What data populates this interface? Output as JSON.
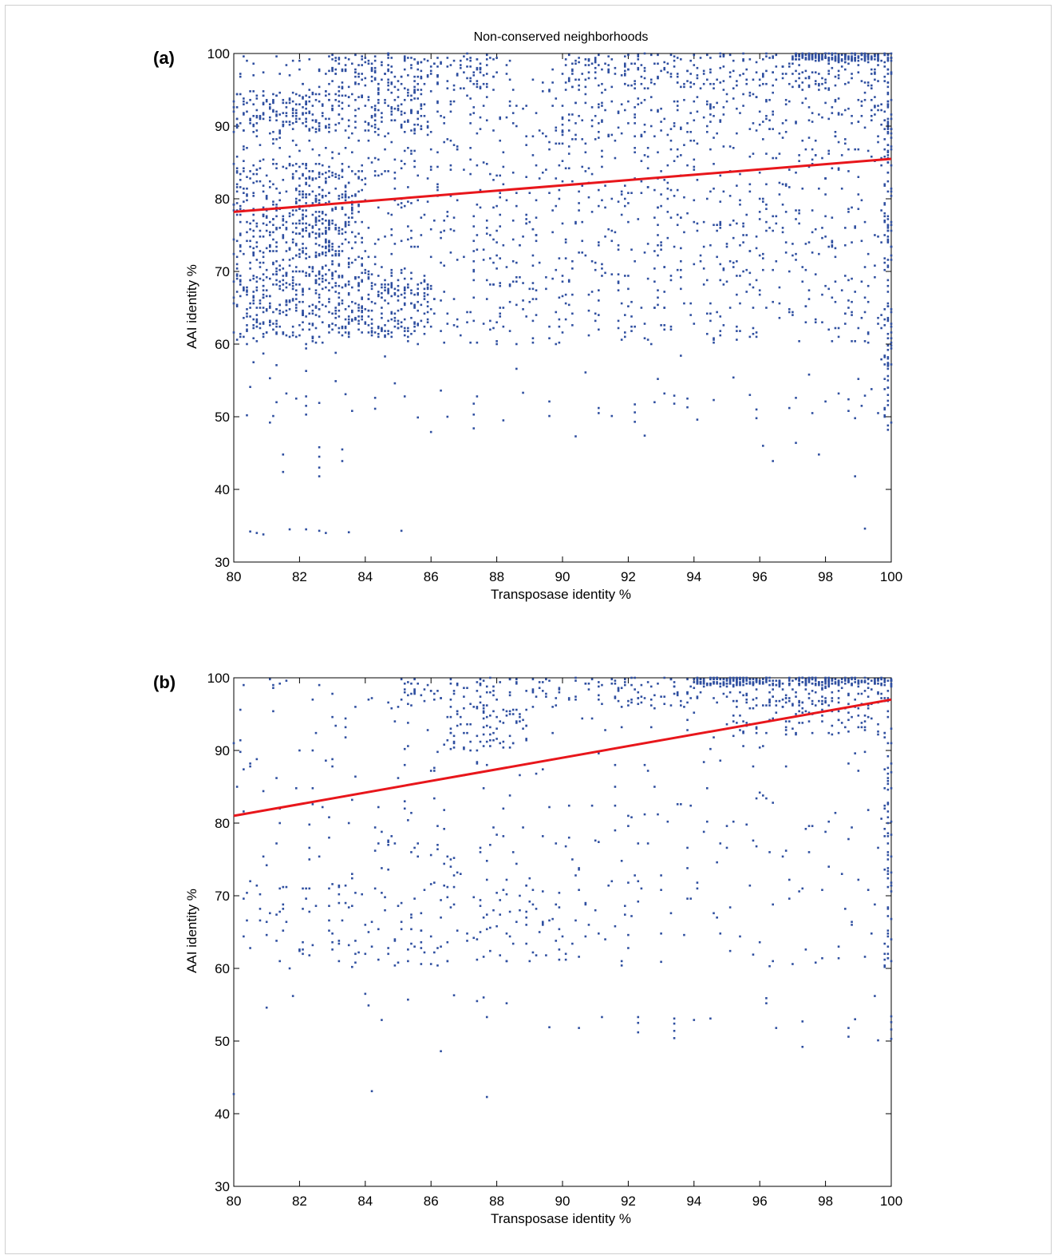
{
  "chart_data": [
    {
      "type": "scatter",
      "panel_label": "(a)",
      "title": "Non-conserved neighborhoods",
      "xlabel": "Transposase identity %",
      "ylabel": "AAI identity %",
      "xlim": [
        80,
        100
      ],
      "ylim": [
        30,
        100
      ],
      "xticks": [
        80,
        82,
        84,
        86,
        88,
        90,
        92,
        94,
        96,
        98,
        100
      ],
      "yticks": [
        30,
        40,
        50,
        60,
        70,
        80,
        90,
        100
      ],
      "grid": false,
      "point_color": "#2f4fa0",
      "fit_color": "#e8161b",
      "fit_line": {
        "x": [
          80,
          100
        ],
        "y": [
          78.2,
          85.5
        ]
      },
      "clusters": [
        {
          "x": [
            80,
            100
          ],
          "y": [
            60,
            100
          ],
          "n": 1500
        },
        {
          "x": [
            80,
            86
          ],
          "y": [
            61,
            70
          ],
          "n": 420
        },
        {
          "x": [
            80,
            84
          ],
          "y": [
            70,
            85
          ],
          "n": 320
        },
        {
          "x": [
            82,
            83
          ],
          "y": [
            72,
            84
          ],
          "n": 90
        },
        {
          "x": [
            80,
            86
          ],
          "y": [
            89,
            95
          ],
          "n": 250
        },
        {
          "x": [
            83,
            88
          ],
          "y": [
            95,
            100
          ],
          "n": 150
        },
        {
          "x": [
            90,
            100
          ],
          "y": [
            95,
            100
          ],
          "n": 220
        },
        {
          "x": [
            97,
            100
          ],
          "y": [
            99,
            100
          ],
          "n": 160
        },
        {
          "x": [
            99.8,
            100
          ],
          "y": [
            48,
            100
          ],
          "n": 130
        },
        {
          "x": [
            90,
            100
          ],
          "y": [
            89,
            94
          ],
          "n": 90
        }
      ],
      "points": [
        {
          "x": 80.5,
          "y": 34.2
        },
        {
          "x": 80.7,
          "y": 34.0
        },
        {
          "x": 80.9,
          "y": 33.8
        },
        {
          "x": 81.7,
          "y": 34.5
        },
        {
          "x": 82.2,
          "y": 34.5
        },
        {
          "x": 82.6,
          "y": 34.3
        },
        {
          "x": 82.8,
          "y": 34.0
        },
        {
          "x": 83.5,
          "y": 34.1
        },
        {
          "x": 85.1,
          "y": 34.3
        },
        {
          "x": 99.2,
          "y": 34.6
        },
        {
          "x": 98.9,
          "y": 41.8
        },
        {
          "x": 96.4,
          "y": 43.9
        },
        {
          "x": 97.8,
          "y": 44.8
        },
        {
          "x": 81.5,
          "y": 42.4
        },
        {
          "x": 81.5,
          "y": 44.8
        },
        {
          "x": 82.6,
          "y": 41.8
        },
        {
          "x": 82.6,
          "y": 43.0
        },
        {
          "x": 82.6,
          "y": 44.5
        },
        {
          "x": 82.6,
          "y": 45.8
        },
        {
          "x": 83.3,
          "y": 43.9
        },
        {
          "x": 83.3,
          "y": 45.5
        },
        {
          "x": 80.4,
          "y": 50.2
        },
        {
          "x": 81.1,
          "y": 49.2
        },
        {
          "x": 81.2,
          "y": 50.1
        },
        {
          "x": 81.3,
          "y": 52.0
        },
        {
          "x": 81.6,
          "y": 53.2
        },
        {
          "x": 81.9,
          "y": 52.5
        },
        {
          "x": 82.2,
          "y": 50.3
        },
        {
          "x": 82.2,
          "y": 51.5
        },
        {
          "x": 82.2,
          "y": 52.8
        },
        {
          "x": 82.6,
          "y": 51.9
        },
        {
          "x": 83.4,
          "y": 53.1
        },
        {
          "x": 83.6,
          "y": 50.8
        },
        {
          "x": 84.3,
          "y": 52.6
        },
        {
          "x": 84.3,
          "y": 51.1
        },
        {
          "x": 85.2,
          "y": 52.8
        },
        {
          "x": 85.6,
          "y": 49.9
        },
        {
          "x": 86.0,
          "y": 47.9
        },
        {
          "x": 86.5,
          "y": 50.0
        },
        {
          "x": 87.3,
          "y": 48.4
        },
        {
          "x": 87.3,
          "y": 50.3
        },
        {
          "x": 87.3,
          "y": 51.8
        },
        {
          "x": 87.4,
          "y": 52.8
        },
        {
          "x": 88.2,
          "y": 49.5
        },
        {
          "x": 88.8,
          "y": 53.3
        },
        {
          "x": 89.6,
          "y": 50.1
        },
        {
          "x": 89.6,
          "y": 52.1
        },
        {
          "x": 90.4,
          "y": 47.3
        },
        {
          "x": 91.1,
          "y": 50.5
        },
        {
          "x": 91.1,
          "y": 51.2
        },
        {
          "x": 91.5,
          "y": 50.1
        },
        {
          "x": 92.2,
          "y": 49.3
        },
        {
          "x": 92.2,
          "y": 50.6
        },
        {
          "x": 92.2,
          "y": 51.7
        },
        {
          "x": 92.5,
          "y": 47.4
        },
        {
          "x": 92.8,
          "y": 52.0
        },
        {
          "x": 93.1,
          "y": 53.2
        },
        {
          "x": 93.4,
          "y": 51.8
        },
        {
          "x": 93.4,
          "y": 52.9
        },
        {
          "x": 93.8,
          "y": 51.3
        },
        {
          "x": 93.8,
          "y": 52.5
        },
        {
          "x": 94.1,
          "y": 49.6
        },
        {
          "x": 94.6,
          "y": 52.3
        },
        {
          "x": 95.7,
          "y": 53.0
        },
        {
          "x": 95.9,
          "y": 49.8
        },
        {
          "x": 95.9,
          "y": 51.0
        },
        {
          "x": 96.1,
          "y": 46.0
        },
        {
          "x": 96.9,
          "y": 51.2
        },
        {
          "x": 97.1,
          "y": 46.4
        },
        {
          "x": 97.1,
          "y": 52.6
        },
        {
          "x": 97.6,
          "y": 50.5
        },
        {
          "x": 98.0,
          "y": 52.1
        },
        {
          "x": 98.4,
          "y": 53.2
        },
        {
          "x": 98.7,
          "y": 50.8
        },
        {
          "x": 98.7,
          "y": 52.4
        },
        {
          "x": 98.9,
          "y": 49.8
        },
        {
          "x": 99.1,
          "y": 51.5
        },
        {
          "x": 99.2,
          "y": 52.9
        },
        {
          "x": 99.4,
          "y": 53.8
        },
        {
          "x": 99.6,
          "y": 50.5
        },
        {
          "x": 80.5,
          "y": 54.1
        },
        {
          "x": 81.1,
          "y": 55.3
        },
        {
          "x": 82.2,
          "y": 56.3
        },
        {
          "x": 83.1,
          "y": 54.9
        },
        {
          "x": 84.9,
          "y": 54.6
        },
        {
          "x": 86.3,
          "y": 53.6
        },
        {
          "x": 88.6,
          "y": 56.6
        },
        {
          "x": 90.7,
          "y": 56.1
        },
        {
          "x": 92.9,
          "y": 55.2
        },
        {
          "x": 95.2,
          "y": 55.4
        },
        {
          "x": 97.5,
          "y": 55.8
        },
        {
          "x": 99.0,
          "y": 55.2
        },
        {
          "x": 80.6,
          "y": 57.5
        },
        {
          "x": 80.9,
          "y": 58.7
        },
        {
          "x": 81.3,
          "y": 57.1
        },
        {
          "x": 82.2,
          "y": 59.4
        },
        {
          "x": 83.1,
          "y": 58.8
        },
        {
          "x": 84.6,
          "y": 58.3
        },
        {
          "x": 93.6,
          "y": 58.4
        },
        {
          "x": 99.7,
          "y": 57.9
        }
      ]
    },
    {
      "type": "scatter",
      "panel_label": "(b)",
      "title": "",
      "xlabel": "Transposase identity %",
      "ylabel": "AAI identity %",
      "xlim": [
        80,
        100
      ],
      "ylim": [
        30,
        100
      ],
      "xticks": [
        80,
        82,
        84,
        86,
        88,
        90,
        92,
        94,
        96,
        98,
        100
      ],
      "yticks": [
        30,
        40,
        50,
        60,
        70,
        80,
        90,
        100
      ],
      "grid": false,
      "point_color": "#2f4fa0",
      "fit_color": "#e8161b",
      "fit_line": {
        "x": [
          80,
          100
        ],
        "y": [
          81.0,
          97.0
        ]
      },
      "clusters": [
        {
          "x": [
            80,
            100
          ],
          "y": [
            60,
            100
          ],
          "n": 420
        },
        {
          "x": [
            85,
            100
          ],
          "y": [
            96,
            100
          ],
          "n": 240
        },
        {
          "x": [
            94,
            100
          ],
          "y": [
            99,
            100
          ],
          "n": 260
        },
        {
          "x": [
            86.5,
            89
          ],
          "y": [
            90,
            96
          ],
          "n": 70
        },
        {
          "x": [
            95,
            100
          ],
          "y": [
            92,
            99
          ],
          "n": 110
        },
        {
          "x": [
            99.8,
            100
          ],
          "y": [
            60,
            100
          ],
          "n": 70
        },
        {
          "x": [
            80,
            90
          ],
          "y": [
            60,
            72
          ],
          "n": 110
        }
      ],
      "points": [
        {
          "x": 80.0,
          "y": 42.7
        },
        {
          "x": 84.2,
          "y": 43.1
        },
        {
          "x": 87.7,
          "y": 42.3
        },
        {
          "x": 86.3,
          "y": 48.6
        },
        {
          "x": 89.6,
          "y": 51.9
        },
        {
          "x": 90.5,
          "y": 51.8
        },
        {
          "x": 92.3,
          "y": 51.2
        },
        {
          "x": 92.3,
          "y": 52.5
        },
        {
          "x": 92.3,
          "y": 53.3
        },
        {
          "x": 93.4,
          "y": 50.4
        },
        {
          "x": 93.4,
          "y": 51.4
        },
        {
          "x": 93.4,
          "y": 52.4
        },
        {
          "x": 93.4,
          "y": 53.1
        },
        {
          "x": 94.0,
          "y": 52.9
        },
        {
          "x": 94.5,
          "y": 53.1
        },
        {
          "x": 91.2,
          "y": 53.3
        },
        {
          "x": 97.3,
          "y": 49.2
        },
        {
          "x": 97.3,
          "y": 52.7
        },
        {
          "x": 98.7,
          "y": 50.6
        },
        {
          "x": 98.7,
          "y": 51.8
        },
        {
          "x": 98.9,
          "y": 53.0
        },
        {
          "x": 99.6,
          "y": 50.1
        },
        {
          "x": 100.0,
          "y": 50.3
        },
        {
          "x": 100.0,
          "y": 51.6
        },
        {
          "x": 100.0,
          "y": 52.6
        },
        {
          "x": 100.0,
          "y": 53.4
        },
        {
          "x": 81.0,
          "y": 54.6
        },
        {
          "x": 81.8,
          "y": 56.2
        },
        {
          "x": 84.0,
          "y": 56.5
        },
        {
          "x": 84.1,
          "y": 54.9
        },
        {
          "x": 84.5,
          "y": 52.9
        },
        {
          "x": 85.3,
          "y": 55.7
        },
        {
          "x": 86.7,
          "y": 56.3
        },
        {
          "x": 87.4,
          "y": 55.5
        },
        {
          "x": 87.6,
          "y": 56.0
        },
        {
          "x": 88.3,
          "y": 55.2
        },
        {
          "x": 87.7,
          "y": 53.3
        },
        {
          "x": 96.2,
          "y": 55.2
        },
        {
          "x": 96.2,
          "y": 55.9
        },
        {
          "x": 96.5,
          "y": 51.8
        },
        {
          "x": 99.5,
          "y": 56.2
        },
        {
          "x": 86.5,
          "y": 61.0
        },
        {
          "x": 88.1,
          "y": 61.8
        },
        {
          "x": 95.8,
          "y": 61.9
        },
        {
          "x": 96.3,
          "y": 60.3
        },
        {
          "x": 96.4,
          "y": 61.0
        },
        {
          "x": 99.2,
          "y": 61.6
        },
        {
          "x": 93.0,
          "y": 60.9
        }
      ]
    }
  ]
}
